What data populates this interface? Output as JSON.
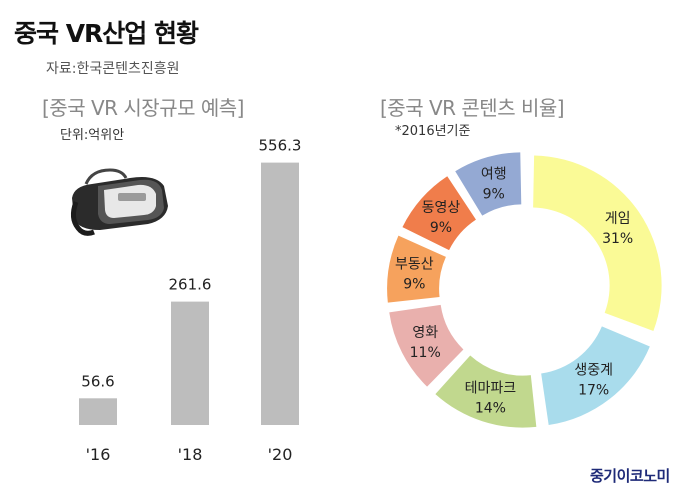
{
  "header": {
    "title": "중국 VR산업 현황",
    "source": "자료:한국콘텐츠진흥원"
  },
  "watermark": "중기이코노미",
  "chart_data": [
    {
      "type": "bar",
      "title": "[중국 VR 시장규모 예측]",
      "unit_note": "단위:억위안",
      "categories": [
        "'16",
        "'18",
        "'20"
      ],
      "values": [
        56.6,
        261.6,
        556.3
      ],
      "value_labels": [
        "56.6",
        "261.6",
        "556.3"
      ],
      "bar_color": "#bdbdbd",
      "ylim": [
        0,
        600
      ]
    },
    {
      "type": "pie",
      "title": "[중국 VR 콘텐츠 비율]",
      "note": "*2016년기준",
      "slices": [
        {
          "label": "게임",
          "value": 31,
          "value_label": "31%",
          "color": "#fafa96"
        },
        {
          "label": "생중계",
          "value": 17,
          "value_label": "17%",
          "color": "#a9dcec"
        },
        {
          "label": "테마파크",
          "value": 14,
          "value_label": "14%",
          "color": "#c1d88e"
        },
        {
          "label": "영화",
          "value": 11,
          "value_label": "11%",
          "color": "#e9b0ad"
        },
        {
          "label": "부동산",
          "value": 9,
          "value_label": "9%",
          "color": "#f6a25d"
        },
        {
          "label": "동영상",
          "value": 9,
          "value_label": "9%",
          "color": "#f07d4b"
        },
        {
          "label": "여행",
          "value": 9,
          "value_label": "9%",
          "color": "#94a9d3"
        }
      ]
    }
  ]
}
